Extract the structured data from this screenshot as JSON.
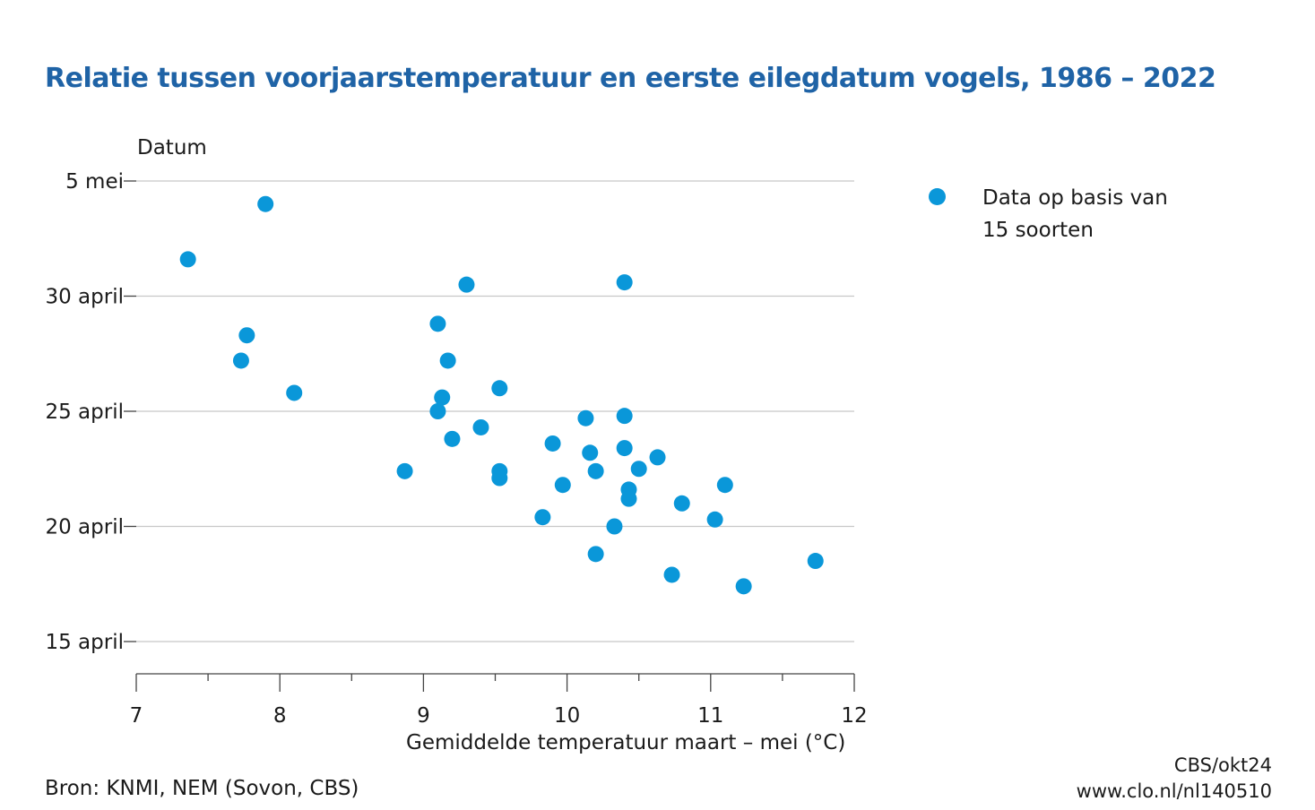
{
  "chart_data": {
    "type": "scatter",
    "title": "Relatie tussen voorjaarstemperatuur en eerste eilegdatum vogels, 1986 –  2022",
    "xlabel": "Gemiddelde temperatuur maart – mei (°C)",
    "ylabel": "Datum",
    "xlim": [
      7,
      12
    ],
    "x_ticks": [
      7,
      8,
      9,
      10,
      11,
      12
    ],
    "ylim": [
      13.5,
      35
    ],
    "y_ticks": [
      {
        "value": 35,
        "label": "5 mei"
      },
      {
        "value": 30,
        "label": "30 april"
      },
      {
        "value": 25,
        "label": "25 april"
      },
      {
        "value": 20,
        "label": "20 april"
      },
      {
        "value": 15,
        "label": "15 april"
      }
    ],
    "grid": "horizontal",
    "legend_position": "right",
    "color": "#0a97d9",
    "series": [
      {
        "name": "Data op basis van 15 soorten",
        "points": [
          [
            7.9,
            34.0
          ],
          [
            7.36,
            31.6
          ],
          [
            9.3,
            30.5
          ],
          [
            10.4,
            30.6
          ],
          [
            9.1,
            28.8
          ],
          [
            7.77,
            28.3
          ],
          [
            7.73,
            27.2
          ],
          [
            9.17,
            27.2
          ],
          [
            8.1,
            25.8
          ],
          [
            9.53,
            26.0
          ],
          [
            9.13,
            25.6
          ],
          [
            9.1,
            25.0
          ],
          [
            10.13,
            24.7
          ],
          [
            10.4,
            24.8
          ],
          [
            9.4,
            24.3
          ],
          [
            9.2,
            23.8
          ],
          [
            9.9,
            23.6
          ],
          [
            10.4,
            23.4
          ],
          [
            10.16,
            23.2
          ],
          [
            10.63,
            23.0
          ],
          [
            8.87,
            22.4
          ],
          [
            9.53,
            22.4
          ],
          [
            9.53,
            22.1
          ],
          [
            10.2,
            22.4
          ],
          [
            10.5,
            22.5
          ],
          [
            9.97,
            21.8
          ],
          [
            11.1,
            21.8
          ],
          [
            10.43,
            21.6
          ],
          [
            10.43,
            21.2
          ],
          [
            10.8,
            21.0
          ],
          [
            9.83,
            20.4
          ],
          [
            11.03,
            20.3
          ],
          [
            10.33,
            20.0
          ],
          [
            10.2,
            18.8
          ],
          [
            10.73,
            17.9
          ],
          [
            11.73,
            18.5
          ],
          [
            11.23,
            17.4
          ]
        ]
      }
    ]
  },
  "legend": {
    "line1": "Data op basis van",
    "line2": "15 soorten"
  },
  "footer": {
    "source": "Bron: KNMI, NEM (Sovon, CBS)",
    "credit1": "CBS/okt24",
    "credit2": "www.clo.nl/nl140510"
  }
}
